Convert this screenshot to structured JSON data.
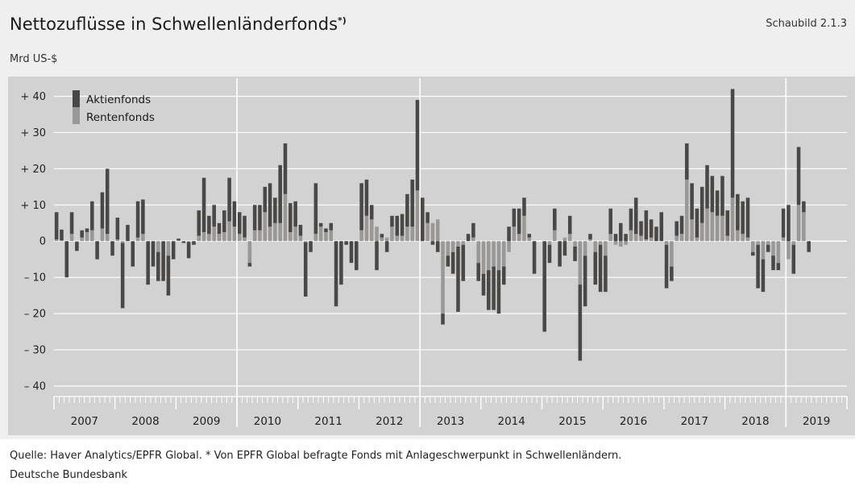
{
  "header": {
    "title": "Nettozuflüsse in Schwellenländerfonds",
    "title_note": "*)",
    "figure_label": "Schaubild 2.1.3",
    "unit": "Mrd US-$"
  },
  "footer": {
    "source": "Quelle: Haver Analytics/EPFR Global. * Von EPFR Global befragte Fonds mit Anlageschwerpunkt in Schwellenländern.",
    "publisher": "Deutsche Bundesbank"
  },
  "colors": {
    "equity": "#4a4846",
    "bond": "#9a9896",
    "plot_background": "#d2d2d2",
    "grid": "#ffffff"
  },
  "chart_data": {
    "type": "bar",
    "stacked": true,
    "title": "Nettozuflüsse in Schwellenländerfonds",
    "ylabel": "Mrd US-$",
    "ylim": [
      -42,
      45
    ],
    "yticks": [
      -40,
      -30,
      -20,
      -10,
      0,
      10,
      20,
      30,
      40
    ],
    "ytick_labels": [
      "– 40",
      "– 30",
      "– 20",
      "– 10",
      "0",
      "+ 10",
      "+ 20",
      "+ 30",
      "+ 40"
    ],
    "grid": true,
    "legend_position": "top-left",
    "frequency": "monthly",
    "start": "2007-01",
    "years": [
      "2007",
      "2008",
      "2009",
      "2010",
      "2011",
      "2012",
      "2013",
      "2014",
      "2015",
      "2016",
      "2017",
      "2018",
      "2019"
    ],
    "year_separators": [
      "2010",
      "2013",
      "2019"
    ],
    "series": [
      {
        "name": "Aktienfonds",
        "values": [
          7.5,
          3,
          -10,
          6,
          -2.5,
          2,
          1,
          8,
          -5,
          10,
          18,
          -4,
          6,
          -18,
          4.5,
          -7,
          10,
          9.5,
          -12,
          -7,
          -8,
          -11,
          -11,
          -5,
          0.5,
          -0.5,
          -4.5,
          -1,
          7,
          15,
          5,
          6,
          3,
          6,
          12,
          7,
          6,
          6,
          -1,
          7,
          7,
          7,
          12,
          7,
          16,
          14,
          8,
          7,
          3,
          -15,
          -3,
          14,
          1,
          1,
          2,
          -18,
          -12,
          -1,
          -6,
          -8,
          13,
          10,
          4,
          -8,
          1,
          -3,
          3,
          5.5,
          6,
          9,
          13,
          25,
          12,
          3,
          -1,
          -3,
          -3,
          -3,
          -6,
          -18,
          -10,
          2,
          4,
          -5,
          -6,
          -11,
          -12,
          -12,
          -5,
          4,
          5,
          7,
          5,
          1,
          -9,
          0,
          -25,
          -5,
          6,
          -7,
          -4,
          5,
          -4,
          -21,
          -14,
          1.5,
          -9,
          -13,
          -10,
          7,
          2,
          5,
          2,
          6,
          10,
          4,
          8,
          5,
          4,
          8,
          -12,
          -4,
          4,
          5,
          10,
          10,
          8,
          10,
          12,
          10,
          7,
          11,
          7,
          30,
          10,
          9,
          11,
          -1,
          -12,
          -9,
          -2,
          -4,
          -2,
          8,
          10,
          -8,
          16,
          3,
          -3
        ]
      },
      {
        "name": "Rentenfonds",
        "values": [
          0.5,
          0.2,
          0,
          2,
          -0.2,
          1,
          2.5,
          3,
          0,
          3.5,
          2,
          0,
          0.5,
          -0.5,
          0,
          0,
          1,
          2,
          0,
          0,
          -3,
          0,
          -4,
          0,
          0.2,
          0,
          -0.2,
          0,
          1.5,
          2.5,
          2,
          4,
          2,
          2.5,
          5.5,
          4,
          2,
          1,
          -6,
          3,
          3,
          8,
          4,
          5,
          5,
          13,
          2.5,
          4,
          1.5,
          -0.3,
          0,
          2,
          4,
          2.5,
          3,
          0,
          0,
          0,
          0,
          0,
          3,
          7,
          6,
          4,
          1,
          1,
          4,
          1.5,
          1.5,
          4,
          4,
          14,
          0,
          5,
          5,
          6,
          -20,
          -4,
          -3,
          -1.5,
          -1,
          0,
          1,
          -6,
          -9,
          -8,
          -7,
          -8,
          -7,
          -3,
          4,
          2,
          7,
          1,
          0,
          0,
          0,
          -1,
          3,
          0,
          1,
          2,
          -1.5,
          -12,
          -4,
          0.5,
          -3,
          -1,
          -4,
          2,
          -1,
          -1.5,
          -1,
          3,
          2,
          1.5,
          0.5,
          1,
          0,
          0,
          -1,
          -7,
          1.5,
          2,
          17,
          6,
          1,
          5,
          9,
          8,
          7,
          7,
          1.5,
          12,
          3,
          2,
          1,
          -3,
          -1,
          -5,
          -1,
          -4,
          -6,
          1,
          -5,
          -1,
          10,
          8,
          0
        ]
      }
    ]
  }
}
